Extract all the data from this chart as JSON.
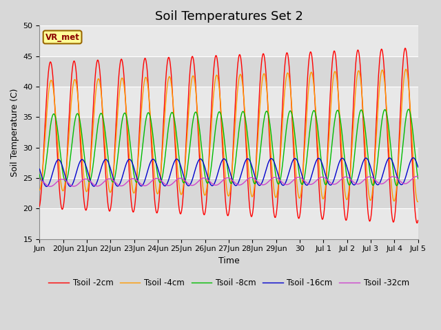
{
  "title": "Soil Temperatures Set 2",
  "xlabel": "Time",
  "ylabel": "Soil Temperature (C)",
  "ylim": [
    15,
    50
  ],
  "yticks": [
    15,
    20,
    25,
    30,
    35,
    40,
    45,
    50
  ],
  "legend_labels": [
    "Tsoil -2cm",
    "Tsoil -4cm",
    "Tsoil -8cm",
    "Tsoil -16cm",
    "Tsoil -32cm"
  ],
  "line_colors": [
    "#ff0000",
    "#ff9900",
    "#00bb00",
    "#0000cc",
    "#cc44cc"
  ],
  "annotation_text": "VR_met",
  "annotation_box_color": "#ffff99",
  "annotation_border_color": "#996600",
  "background_color": "#d8d8d8",
  "plot_bg_color": "#d8d8d8",
  "grid_color": "#ffffff",
  "title_fontsize": 13,
  "label_fontsize": 9,
  "tick_fontsize": 8,
  "xtick_labels": [
    "Jun",
    "20Jun",
    "21Jun",
    "22Jun",
    "23Jun",
    "24Jun",
    "25Jun",
    "26Jun",
    "27Jun",
    "28Jun",
    "29Jun",
    "30",
    "Jul 1",
    "Jul 2",
    "Jul 3",
    "Jul 4",
    "Jul 5"
  ],
  "xtick_positions": [
    0,
    1,
    2,
    3,
    4,
    5,
    6,
    7,
    8,
    9,
    10,
    11,
    12,
    13,
    14,
    15,
    16
  ]
}
